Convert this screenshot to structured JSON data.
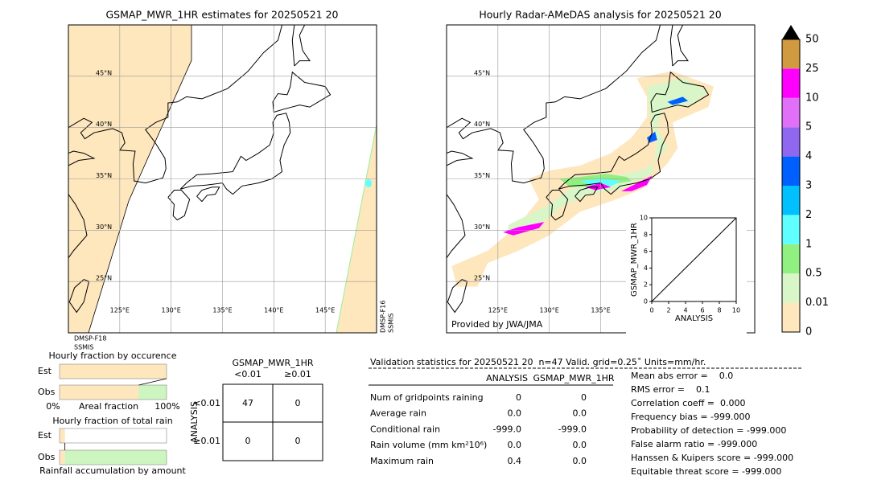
{
  "left_map": {
    "title": "GSMAP_MWR_1HR estimates for 20250521 20",
    "lat_labels": [
      "45°N",
      "40°N",
      "35°N",
      "30°N",
      "25°N"
    ],
    "lon_labels": [
      "125°E",
      "130°E",
      "135°E",
      "140°E",
      "145°E"
    ],
    "sensor_labels": [
      "DMSP-F18",
      "SSMIS"
    ],
    "sensor_labels_right": [
      "DMSP-F16",
      "SSMIS"
    ]
  },
  "right_map": {
    "title": "Hourly Radar-AMeDAS analysis for 20250521 20",
    "lat_labels": [
      "45°N",
      "40°N",
      "35°N",
      "30°N",
      "25°N"
    ],
    "lon_labels": [
      "125°E",
      "130°E",
      "135°E"
    ],
    "credit": "Provided by JWA/JMA"
  },
  "inset": {
    "xlabel": "ANALYSIS",
    "ylabel": "GSMAP_MWR_1HR",
    "xlim": [
      0,
      10
    ],
    "ylim": [
      0,
      10
    ],
    "xticks": [
      0,
      2,
      4,
      6,
      8,
      10
    ],
    "yticks": [
      0,
      2,
      4,
      6,
      8,
      10
    ]
  },
  "colorbar": {
    "labels": [
      "0",
      "0.01",
      "0.5",
      "1",
      "2",
      "3",
      "4",
      "5",
      "10",
      "25",
      "50"
    ],
    "colors": [
      "#fee6bd",
      "#d8f6c8",
      "#90f080",
      "#60ffff",
      "#00c0ff",
      "#0060ff",
      "#9068f0",
      "#e070f8",
      "#ff00ff",
      "#d09a40"
    ]
  },
  "occurrence": {
    "title": "Hourly fraction by occurence",
    "rows": [
      "Est",
      "Obs"
    ],
    "axis_labels": [
      "0%",
      "Areal fraction",
      "100%"
    ],
    "colors": [
      "#fee6bd",
      "#ccf5c0"
    ],
    "est": [
      100
    ],
    "obs": [
      74,
      26
    ]
  },
  "total_rain": {
    "title": "Hourly fraction of total rain",
    "rows": [
      "Est",
      "Obs"
    ],
    "footer": "Rainfall accumulation by amount",
    "colors": [
      "#fee6bd",
      "#ccf5c0"
    ],
    "est": [
      5
    ],
    "obs": [
      5,
      95
    ]
  },
  "contingency": {
    "title": "GSMAP_MWR_1HR",
    "columns": [
      "<0.01",
      "≥0.01"
    ],
    "rows": [
      "<0.01",
      "≥0.01"
    ],
    "row_axis": "ANALYSIS",
    "cells": [
      [
        47,
        0
      ],
      [
        0,
        0
      ]
    ]
  },
  "validation": {
    "header": "Validation statistics for 20250521 20  n=47 Valid. grid=0.25˚ Units=mm/hr.",
    "columns": [
      "ANALYSIS",
      "GSMAP_MWR_1HR"
    ],
    "rows": [
      [
        "Num of gridpoints raining",
        "0",
        "0"
      ],
      [
        "Average rain",
        "0.0",
        "0.0"
      ],
      [
        "Conditional rain",
        "-999.0",
        "-999.0"
      ],
      [
        "Rain volume (mm km²10⁶)",
        "0.0",
        "0.0"
      ],
      [
        "Maximum rain",
        "0.4",
        "0.0"
      ]
    ],
    "scores": [
      "Mean abs error =    0.0",
      "RMS error =    0.1",
      "Correlation coeff =  0.000",
      "Frequency bias = -999.000",
      "Probability of detection = -999.000",
      "False alarm ratio = -999.000",
      "Hanssen & Kuipers score = -999.000",
      "Equitable threat score = -999.000"
    ]
  }
}
